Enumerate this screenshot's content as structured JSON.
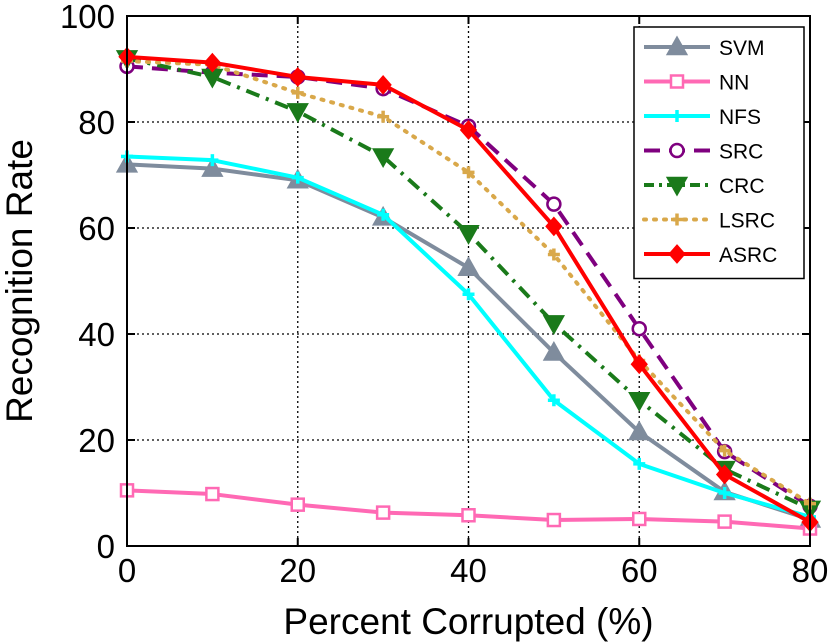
{
  "chart_data": {
    "type": "line",
    "title": "",
    "xlabel": "Percent Corrupted (%)",
    "ylabel": "Recognition Rate",
    "xlim": [
      0,
      80
    ],
    "ylim": [
      0,
      100
    ],
    "xticks": [
      0,
      20,
      40,
      60,
      80
    ],
    "yticks": [
      0,
      20,
      40,
      60,
      80,
      100
    ],
    "grid": true,
    "legend_position": "top-right",
    "x": [
      0,
      10,
      20,
      30,
      40,
      50,
      60,
      70,
      80
    ],
    "series": [
      {
        "name": "SVM",
        "color": "#7f8c9d",
        "marker": "triangle-up",
        "dash": "solid",
        "values": [
          72,
          71.2,
          69,
          62,
          52.5,
          36.5,
          21.5,
          10.2,
          5
        ]
      },
      {
        "name": "NN",
        "color": "#ff69b4",
        "marker": "square",
        "dash": "solid",
        "values": [
          10.5,
          9.8,
          7.8,
          6.3,
          5.8,
          4.9,
          5.1,
          4.6,
          3.3
        ]
      },
      {
        "name": "NFS",
        "color": "#00ffff",
        "marker": "plus",
        "dash": "solid",
        "values": [
          73.5,
          72.8,
          69.5,
          62.5,
          47.5,
          27.5,
          15.5,
          10,
          5.5
        ]
      },
      {
        "name": "SRC",
        "color": "#7f007f",
        "marker": "circle",
        "dash": "dashed",
        "values": [
          90.5,
          89.3,
          88.5,
          86.3,
          79.2,
          64.5,
          41,
          17.8,
          7.5
        ]
      },
      {
        "name": "CRC",
        "color": "#1a7a1a",
        "marker": "triangle-down",
        "dash": "dashdot",
        "values": [
          92,
          88.5,
          82,
          73.5,
          59,
          42,
          27.5,
          14.5,
          7
        ]
      },
      {
        "name": "LSRC",
        "color": "#d9a84a",
        "marker": "plus",
        "dash": "dotted",
        "values": [
          91.5,
          90.8,
          85.5,
          81,
          70.5,
          55,
          35,
          18,
          8
        ]
      },
      {
        "name": "ASRC",
        "color": "#ff0000",
        "marker": "diamond",
        "dash": "solid",
        "values": [
          92.3,
          91.2,
          88.5,
          87,
          78.5,
          60.3,
          34.3,
          13.5,
          4.5
        ]
      }
    ]
  }
}
